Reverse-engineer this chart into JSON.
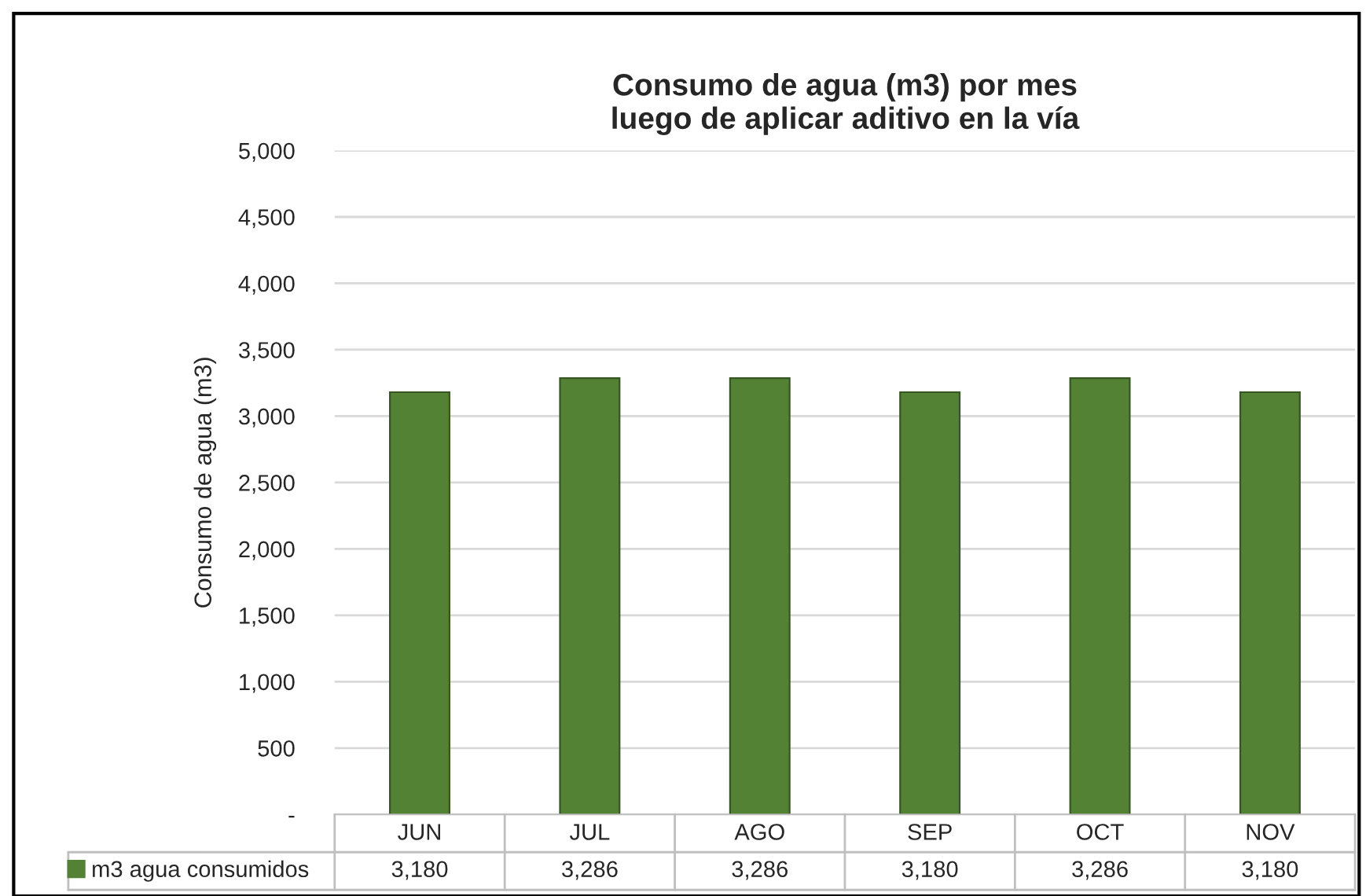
{
  "chart_data": {
    "type": "bar",
    "title": "Consumo de agua (m3) por mes\nluego de aplicar aditivo en la vía",
    "ylabel": "Consumo de agua (m3)",
    "categories": [
      "JUN",
      "JUL",
      "AGO",
      "SEP",
      "OCT",
      "NOV"
    ],
    "series": [
      {
        "name": "m3 agua consumidos",
        "color": "#548235",
        "values": [
          3180,
          3286,
          3286,
          3180,
          3286,
          3180
        ],
        "value_labels": [
          "3,180",
          "3,286",
          "3,286",
          "3,180",
          "3,286",
          "3,180"
        ]
      }
    ],
    "ylim": [
      0,
      5000
    ],
    "yticks": [
      {
        "value": 0,
        "label": "-"
      },
      {
        "value": 500,
        "label": "500"
      },
      {
        "value": 1000,
        "label": "1,000"
      },
      {
        "value": 1500,
        "label": "1,500"
      },
      {
        "value": 2000,
        "label": "2,000"
      },
      {
        "value": 2500,
        "label": "2,500"
      },
      {
        "value": 3000,
        "label": "3,000"
      },
      {
        "value": 3500,
        "label": "3,500"
      },
      {
        "value": 4000,
        "label": "4,000"
      },
      {
        "value": 4500,
        "label": "4,500"
      },
      {
        "value": 5000,
        "label": "5,000"
      }
    ],
    "grid": "y",
    "legend": "bottom left"
  }
}
